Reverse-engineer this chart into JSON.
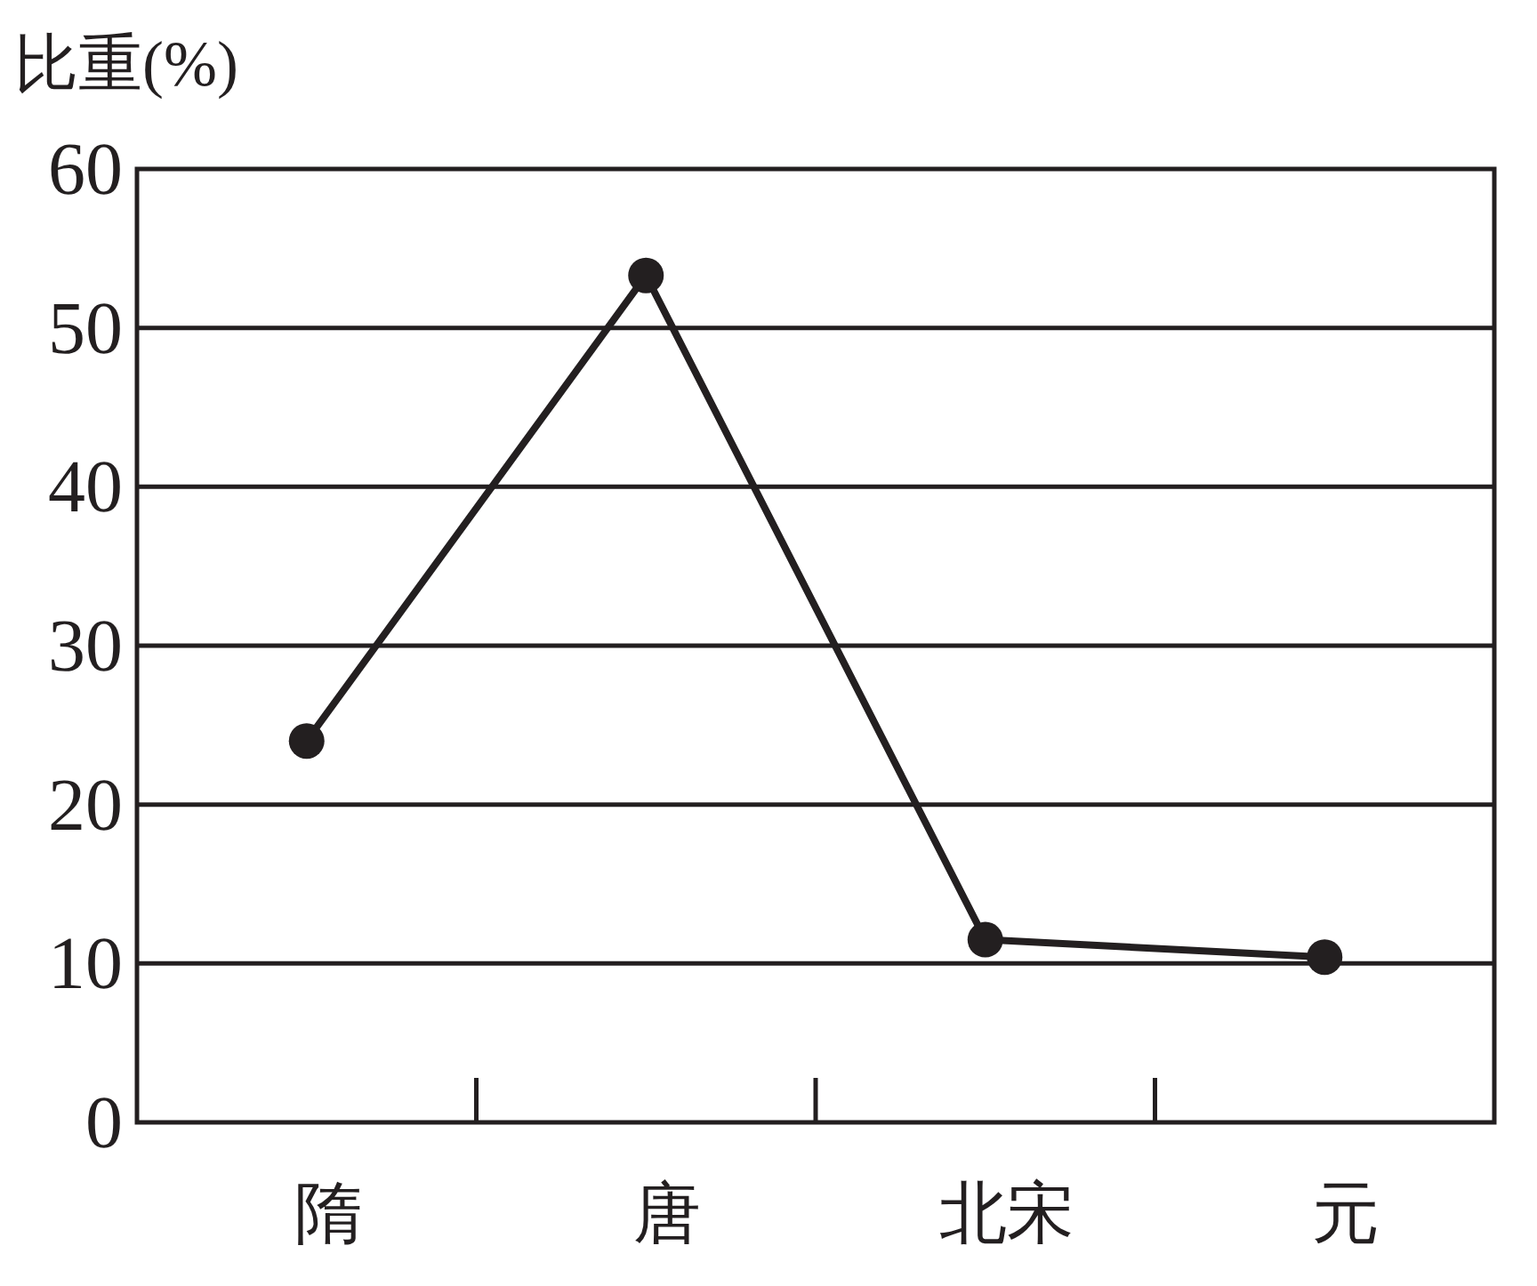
{
  "chart_data": {
    "type": "line",
    "ylabel": "比重(%)",
    "categories": [
      "隋",
      "唐",
      "北宋",
      "元"
    ],
    "series": [
      {
        "color": "#231f20",
        "values": [
          24,
          53.3,
          11.5,
          10.4
        ]
      }
    ],
    "ylim": [
      0,
      60
    ],
    "yticks": [
      0,
      10,
      20,
      30,
      40,
      50,
      60
    ],
    "grid": "y",
    "marker": "circle",
    "line_style": "solid"
  }
}
